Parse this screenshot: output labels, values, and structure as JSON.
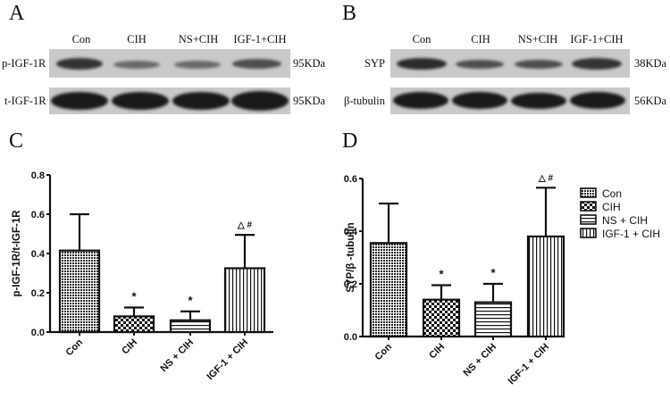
{
  "panels": {
    "A": {
      "letter": "A",
      "columns": [
        "Con",
        "CIH",
        "NS+CIH",
        "IGF-1+CIH"
      ],
      "rows": [
        {
          "label": "p-IGF-1R",
          "size": "95KDa",
          "intensity": [
            0.85,
            0.55,
            0.55,
            0.7
          ]
        },
        {
          "label": "t-IGF-1R",
          "size": "95KDa",
          "intensity": [
            1.0,
            1.0,
            1.0,
            1.0
          ]
        }
      ]
    },
    "B": {
      "letter": "B",
      "columns": [
        "Con",
        "CIH",
        "NS+CIH",
        "IGF-1+CIH"
      ],
      "rows": [
        {
          "label": "SYP",
          "size": "38KDa",
          "intensity": [
            0.9,
            0.7,
            0.7,
            0.85
          ]
        },
        {
          "label": "β-tubulin",
          "size": "56KDa",
          "intensity": [
            1.0,
            1.0,
            1.0,
            1.0
          ]
        }
      ]
    },
    "C": {
      "letter": "C"
    },
    "D": {
      "letter": "D"
    }
  },
  "chart_data": [
    {
      "panel": "C",
      "type": "bar",
      "title": "",
      "xlabel": "",
      "ylabel": "p-IGF-1R/t-IGF-1R",
      "categories": [
        "Con",
        "CIH",
        "NS + CIH",
        "IGF-1 + CIH"
      ],
      "values": [
        0.415,
        0.08,
        0.06,
        0.325
      ],
      "error_upper": [
        0.6,
        0.125,
        0.105,
        0.495
      ],
      "annotations": [
        "",
        "*",
        "*",
        "△ #"
      ],
      "ylim": [
        0,
        0.8
      ],
      "yticks": [
        "0.0",
        "0.2",
        "0.4",
        "0.6",
        "0.8"
      ],
      "grid": false,
      "legend": null
    },
    {
      "panel": "D",
      "type": "bar",
      "title": "",
      "xlabel": "",
      "ylabel": "SYP/β -tubulin",
      "categories": [
        "Con",
        "CIH",
        "NS + CIH",
        "IGF-1 + CIH"
      ],
      "values": [
        0.355,
        0.14,
        0.13,
        0.38
      ],
      "error_upper": [
        0.505,
        0.195,
        0.2,
        0.565
      ],
      "annotations": [
        "",
        "*",
        "*",
        "△ #"
      ],
      "ylim": [
        0,
        0.6
      ],
      "yticks": [
        "0.0",
        "0.2",
        "0.4",
        "0.6"
      ],
      "grid": false,
      "legend": {
        "position": "right",
        "entries": [
          "Con",
          "CIH",
          "NS + CIH",
          "IGF-1 + CIH"
        ]
      }
    }
  ]
}
